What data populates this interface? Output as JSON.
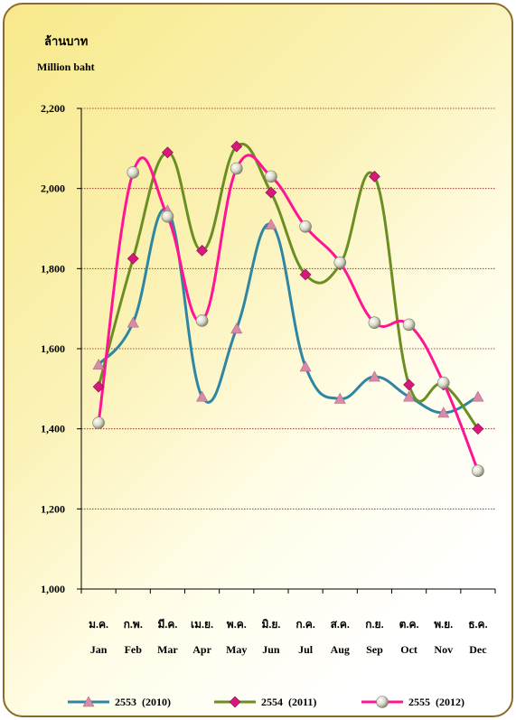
{
  "chart_data": {
    "type": "line",
    "unit_th": "ล้านบาท",
    "unit_en": "Million baht",
    "categories_th": [
      "ม.ค.",
      "ก.พ.",
      "มี.ค.",
      "เม.ย.",
      "พ.ค.",
      "มิ.ย.",
      "ก.ค.",
      "ส.ค.",
      "ก.ย.",
      "ต.ค.",
      "พ.ย.",
      "ธ.ค."
    ],
    "categories": [
      "Jan",
      "Feb",
      "Mar",
      "Apr",
      "May",
      "Jun",
      "Jul",
      "Aug",
      "Sep",
      "Oct",
      "Nov",
      "Dec"
    ],
    "ylim": [
      1000,
      2200
    ],
    "yticks": [
      1000,
      1200,
      1400,
      1600,
      1800,
      2000,
      2200
    ],
    "ytick_labels": [
      "1,000",
      "1,200",
      "1,400",
      "1,600",
      "1,800",
      "2,000",
      "2,200"
    ],
    "grid": true,
    "legend_position": "bottom",
    "series": [
      {
        "name": "2553  (2010)",
        "color": "#2e86a3",
        "marker": "triangle",
        "marker_color": "#d98aa6",
        "values": [
          1560,
          1665,
          1945,
          1480,
          1650,
          1910,
          1555,
          1475,
          1530,
          1480,
          1440,
          1480
        ]
      },
      {
        "name": "2554  (2011)",
        "color": "#6b8e23",
        "marker": "diamond",
        "marker_color": "#d6197a",
        "values": [
          1505,
          1825,
          2090,
          1845,
          2105,
          1990,
          1785,
          1810,
          2030,
          1510,
          1510,
          1400
        ]
      },
      {
        "name": "2555  (2012)",
        "color": "#ff1493",
        "marker": "circle",
        "marker_color": "#c8c8b4",
        "values": [
          1415,
          2040,
          1930,
          1670,
          2050,
          2030,
          1905,
          1815,
          1665,
          1660,
          1515,
          1295
        ]
      }
    ]
  }
}
